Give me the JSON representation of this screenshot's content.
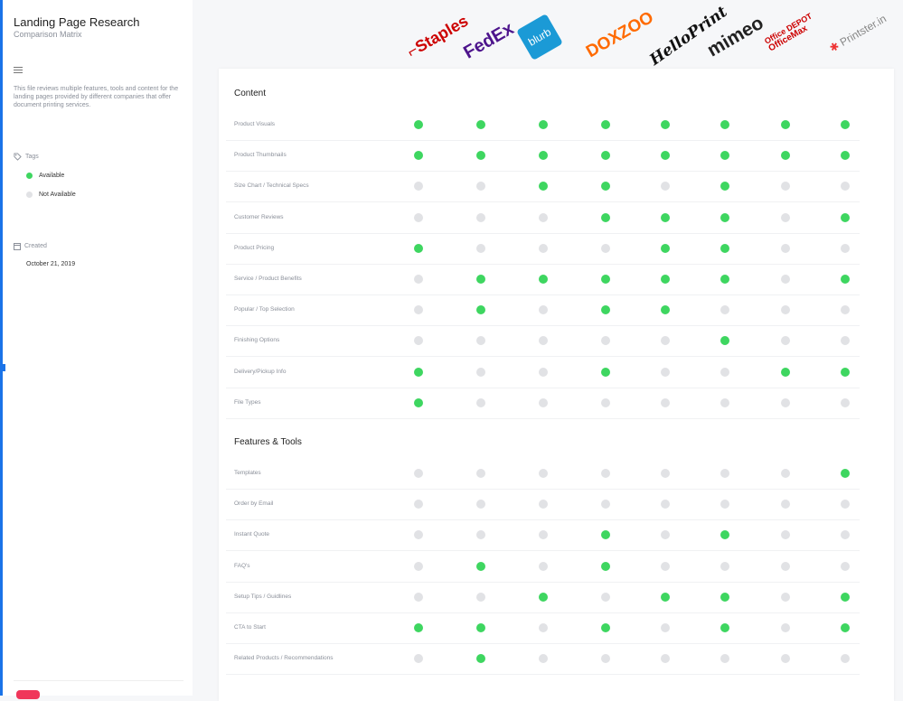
{
  "sidebar": {
    "title": "Landing Page Research",
    "subtitle": "Comparison Matrix",
    "description": "This file reviews multiple features, tools and content for the landing pages provided by different companies that offer document printing services.",
    "tags_label": "Tags",
    "tags": [
      {
        "label": "Available",
        "color": "#3ed660"
      },
      {
        "label": "Not Available",
        "color": "#e1e2e5"
      }
    ],
    "created_label": "Created",
    "created_date": "October 21, 2019"
  },
  "companies": [
    {
      "name": "Staples",
      "color": "#cc0000"
    },
    {
      "name": "FedEx",
      "color": "#4d148c",
      "accent": "#ff6600"
    },
    {
      "name": "blurb",
      "color": "#ffffff",
      "badge": "#1b9ad6"
    },
    {
      "name": "DOXZOO",
      "color": "#ff6a00",
      "accent": "#7bc043"
    },
    {
      "name": "HelloPrint",
      "color": "#111111"
    },
    {
      "name": "mimeo",
      "color": "#222222"
    },
    {
      "name": "Office DEPOT",
      "color": "#cc0000"
    },
    {
      "name": "OfficeMax",
      "color": "#cc0000"
    },
    {
      "name": "Printster.in",
      "color": "#888888"
    }
  ],
  "sections": [
    {
      "title": "Content",
      "rows": [
        {
          "label": "Product Visuals",
          "values": [
            1,
            1,
            1,
            1,
            1,
            1,
            1,
            1
          ]
        },
        {
          "label": "Product Thumbnails",
          "values": [
            1,
            1,
            1,
            1,
            1,
            1,
            1,
            1
          ]
        },
        {
          "label": "Size Chart / Technical Specs",
          "values": [
            0,
            0,
            1,
            1,
            0,
            1,
            0,
            0
          ]
        },
        {
          "label": "Customer Reviews",
          "values": [
            0,
            0,
            0,
            1,
            1,
            1,
            0,
            1
          ]
        },
        {
          "label": "Product Pricing",
          "values": [
            1,
            0,
            0,
            0,
            1,
            1,
            0,
            0
          ]
        },
        {
          "label": "Service / Product Benefits",
          "values": [
            0,
            1,
            1,
            1,
            1,
            1,
            0,
            1
          ]
        },
        {
          "label": "Popular / Top Selection",
          "values": [
            0,
            1,
            0,
            1,
            1,
            0,
            0,
            0
          ]
        },
        {
          "label": "Finishing Options",
          "values": [
            0,
            0,
            0,
            0,
            0,
            1,
            0,
            0
          ]
        },
        {
          "label": "Delivery/Pickup Info",
          "values": [
            1,
            0,
            0,
            1,
            0,
            0,
            1,
            1
          ]
        },
        {
          "label": "File Types",
          "values": [
            1,
            0,
            0,
            0,
            0,
            0,
            0,
            0
          ]
        }
      ]
    },
    {
      "title": "Features & Tools",
      "rows": [
        {
          "label": "Templates",
          "values": [
            0,
            0,
            0,
            0,
            0,
            0,
            0,
            1
          ]
        },
        {
          "label": "Order by Email",
          "values": [
            0,
            0,
            0,
            0,
            0,
            0,
            0,
            0
          ]
        },
        {
          "label": "Instant Quote",
          "values": [
            0,
            0,
            0,
            1,
            0,
            1,
            0,
            0
          ]
        },
        {
          "label": "FAQ's",
          "values": [
            0,
            1,
            0,
            1,
            0,
            0,
            0,
            0
          ]
        },
        {
          "label": "Setup Tips / Guidlines",
          "values": [
            0,
            0,
            1,
            0,
            1,
            1,
            0,
            1
          ]
        },
        {
          "label": "CTA to Start",
          "values": [
            1,
            1,
            0,
            1,
            0,
            1,
            0,
            1
          ]
        },
        {
          "label": "Related Products / Recommendations",
          "values": [
            0,
            1,
            0,
            0,
            0,
            0,
            0,
            0
          ]
        }
      ]
    }
  ]
}
